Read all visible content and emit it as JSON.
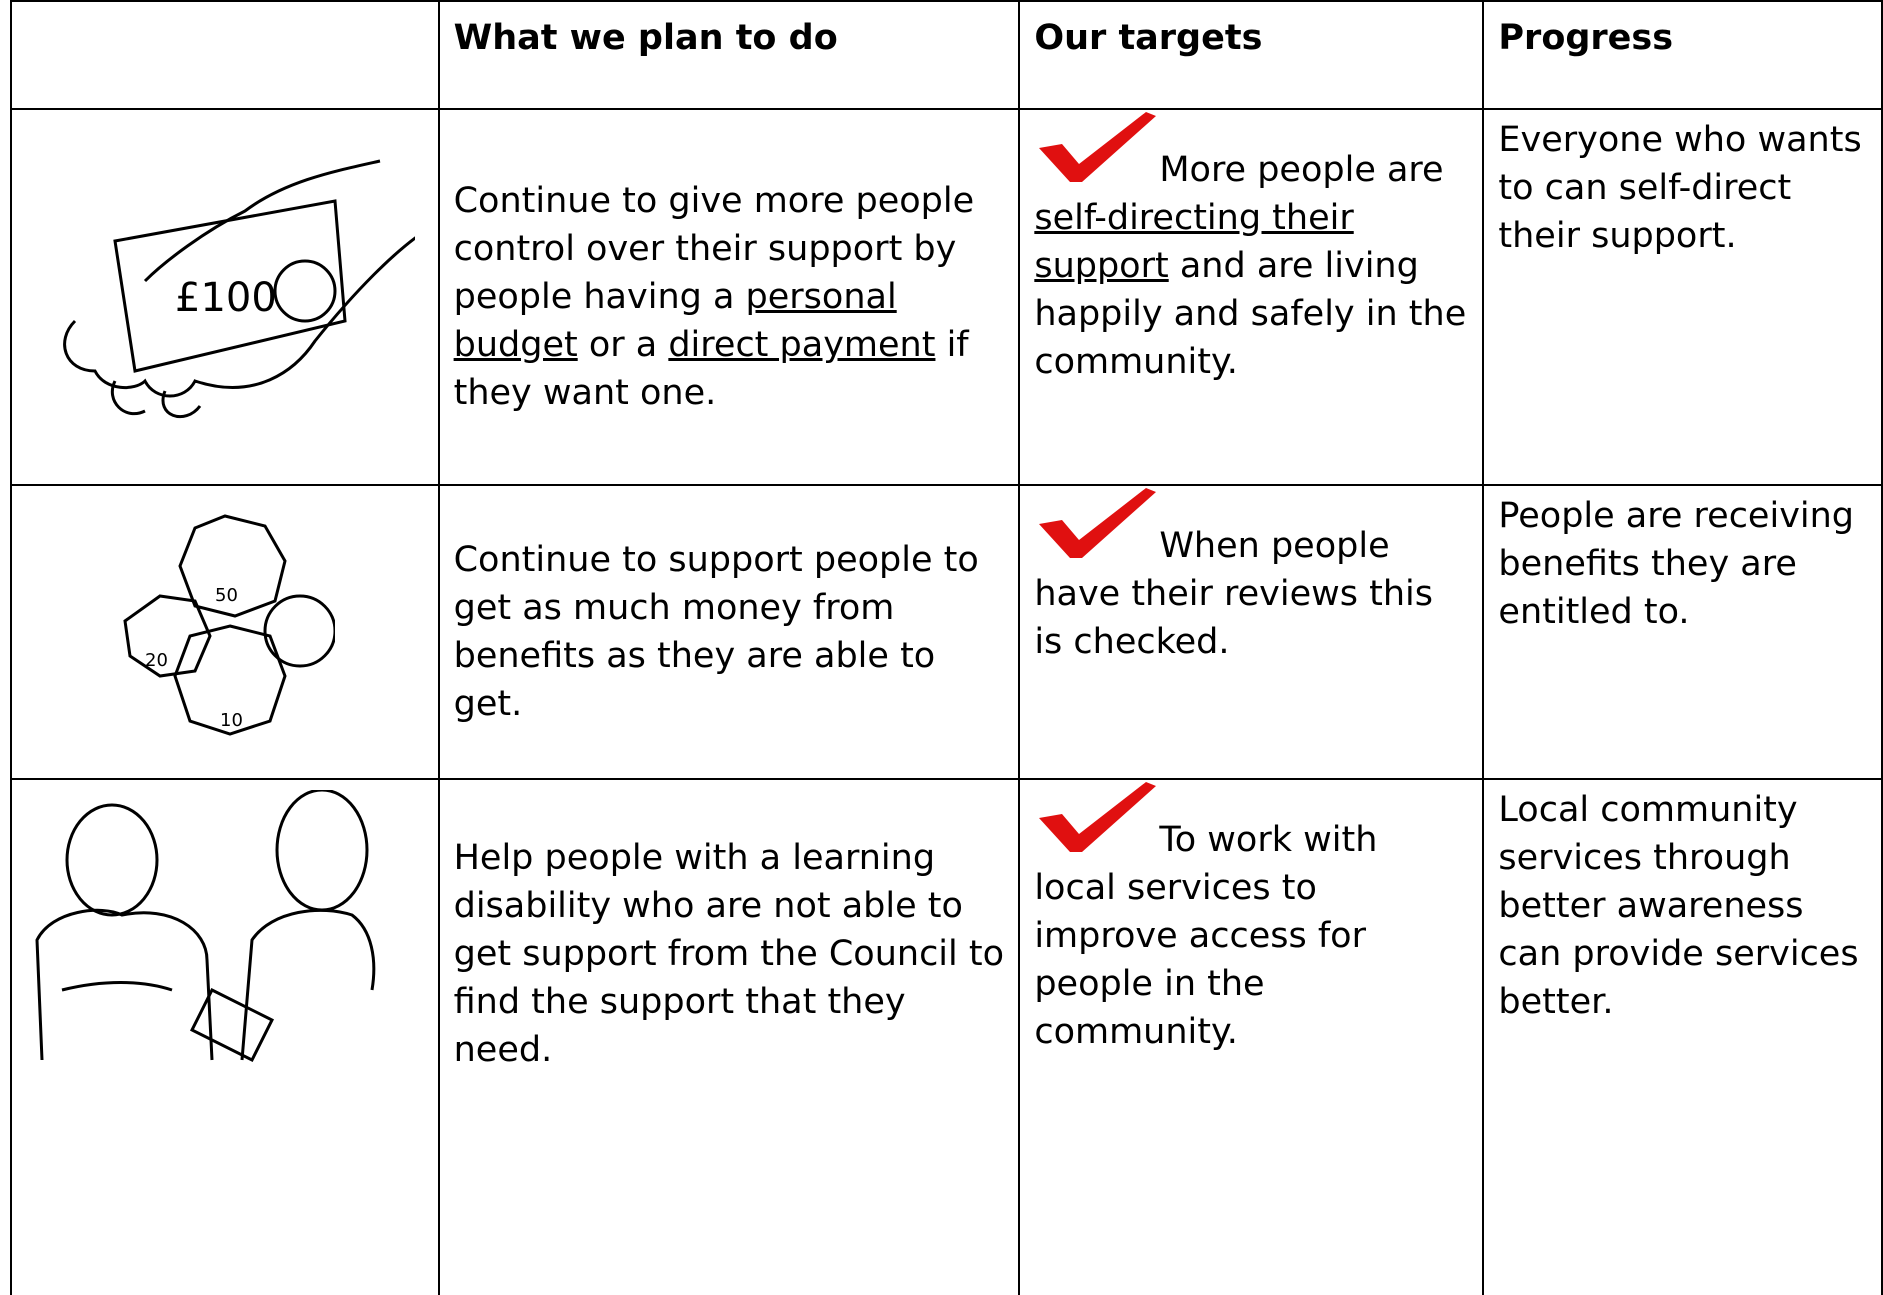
{
  "header": {
    "plan": "What we plan to do",
    "targets": "Our targets",
    "progress": "Progress"
  },
  "rows": [
    {
      "plan": [
        "Continue to give more people control over their support by people having a ",
        "personal budget",
        " or a ",
        "direct payment",
        " if they want one."
      ],
      "targets": [
        "More people are ",
        "self-directing their support",
        " and are living happily and safely in the community."
      ],
      "progress": "Everyone who wants to can self-direct their support."
    },
    {
      "plan": [
        "Continue to support people to get as much money from benefits as they are able to get."
      ],
      "targets": [
        "When people have their reviews this is checked."
      ],
      "progress": "People are receiving benefits they are entitled to."
    },
    {
      "plan": [
        "Help people with a learning disability who are not able to get support from the Council to find the support that they need."
      ],
      "targets": [
        "To work with local services to improve access for people in the community."
      ],
      "progress": "Local community services through better awareness can provide services better."
    }
  ]
}
